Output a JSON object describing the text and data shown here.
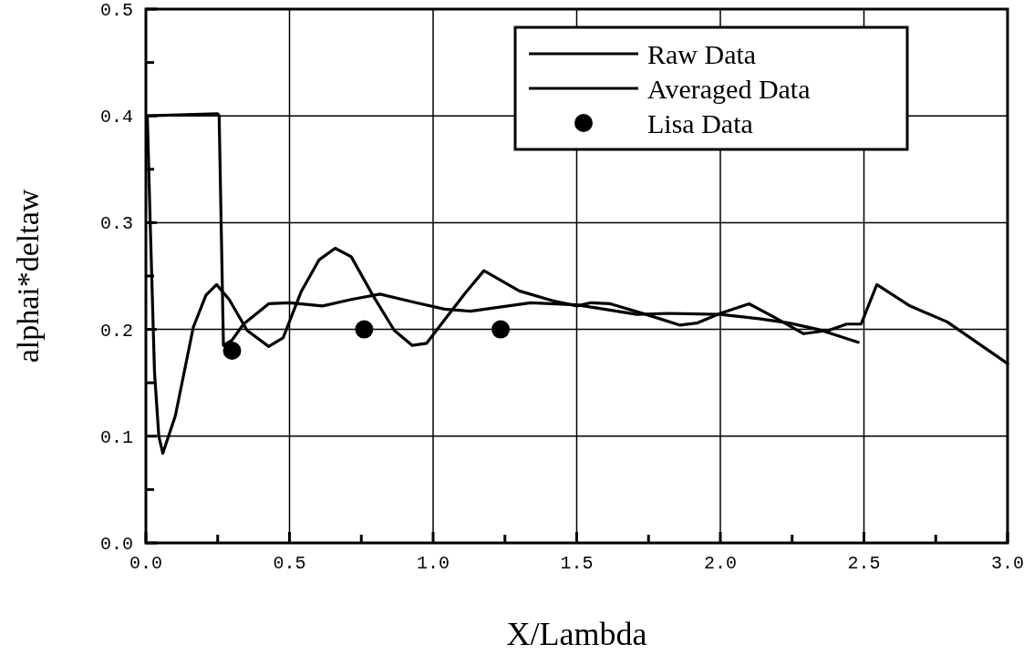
{
  "chart_data": {
    "type": "line",
    "xlabel": "X/Lambda",
    "ylabel": "alphai*deltaw",
    "xlim": [
      0,
      3
    ],
    "ylim": [
      0,
      0.5
    ],
    "xticks": [
      {
        "value": 0,
        "label": "0.0"
      },
      {
        "value": 0.25,
        "label": null
      },
      {
        "value": 0.5,
        "label": "0.5"
      },
      {
        "value": 0.75,
        "label": null
      },
      {
        "value": 1,
        "label": "1.0"
      },
      {
        "value": 1.25,
        "label": null
      },
      {
        "value": 1.5,
        "label": "1.5"
      },
      {
        "value": 1.75,
        "label": null
      },
      {
        "value": 2,
        "label": "2.0"
      },
      {
        "value": 2.25,
        "label": null
      },
      {
        "value": 2.5,
        "label": "2.5"
      },
      {
        "value": 2.75,
        "label": null
      },
      {
        "value": 3,
        "label": "3.0"
      }
    ],
    "yticks": [
      {
        "value": 0,
        "label": "0.0"
      },
      {
        "value": 0.05,
        "label": null
      },
      {
        "value": 0.1,
        "label": "0.1"
      },
      {
        "value": 0.15,
        "label": null
      },
      {
        "value": 0.2,
        "label": "0.2"
      },
      {
        "value": 0.25,
        "label": null
      },
      {
        "value": 0.3,
        "label": "0.3"
      },
      {
        "value": 0.35,
        "label": null
      },
      {
        "value": 0.4,
        "label": "0.4"
      },
      {
        "value": 0.45,
        "label": null
      },
      {
        "value": 0.5,
        "label": "0.5"
      }
    ],
    "grid": true,
    "legend": "top right",
    "series": [
      {
        "name": "Raw Data",
        "color": "#000000",
        "marker": "none",
        "x": [
          0.005,
          0.015,
          0.03,
          0.045,
          0.059,
          0.1025,
          0.165,
          0.209,
          0.246,
          0.29,
          0.3525,
          0.4275,
          0.4775,
          0.54,
          0.6025,
          0.659,
          0.715,
          0.79,
          0.865,
          0.9275,
          0.9775,
          1.04,
          1.115,
          1.177,
          1.3,
          1.415,
          1.5,
          1.55,
          1.617,
          1.754,
          1.86,
          1.92,
          2.0,
          2.1,
          2.19,
          2.29,
          2.376,
          2.44,
          2.49,
          2.545,
          2.66,
          2.79,
          3.0
        ],
        "values": [
          0.4,
          0.3,
          0.16,
          0.1,
          0.084,
          0.119,
          0.202,
          0.232,
          0.242,
          0.228,
          0.199,
          0.184,
          0.192,
          0.235,
          0.265,
          0.276,
          0.268,
          0.232,
          0.199,
          0.185,
          0.187,
          0.209,
          0.235,
          0.255,
          0.236,
          0.227,
          0.222,
          0.225,
          0.224,
          0.213,
          0.204,
          0.206,
          0.215,
          0.224,
          0.211,
          0.196,
          0.199,
          0.205,
          0.205,
          0.242,
          0.222,
          0.207,
          0.168
        ]
      },
      {
        "name": "Averaged Data",
        "color": "#000000",
        "marker": "none",
        "x": [
          0.005,
          0.25,
          0.255,
          0.27,
          0.3,
          0.34,
          0.4275,
          0.5,
          0.615,
          0.715,
          0.815,
          0.94,
          1.04,
          1.13,
          1.34,
          1.5,
          1.71,
          1.82,
          2.0,
          2.135,
          2.24,
          2.34,
          2.48
        ],
        "values": [
          0.4,
          0.402,
          0.4,
          0.185,
          0.19,
          0.205,
          0.224,
          0.225,
          0.222,
          0.228,
          0.233,
          0.225,
          0.219,
          0.217,
          0.225,
          0.223,
          0.214,
          0.215,
          0.214,
          0.21,
          0.206,
          0.2,
          0.188
        ]
      },
      {
        "name": "Lisa Data",
        "color": "#000000",
        "type": "scatter",
        "marker": "circle",
        "x": [
          0.3,
          0.76,
          1.235
        ],
        "values": [
          0.18,
          0.2,
          0.2
        ]
      }
    ]
  }
}
